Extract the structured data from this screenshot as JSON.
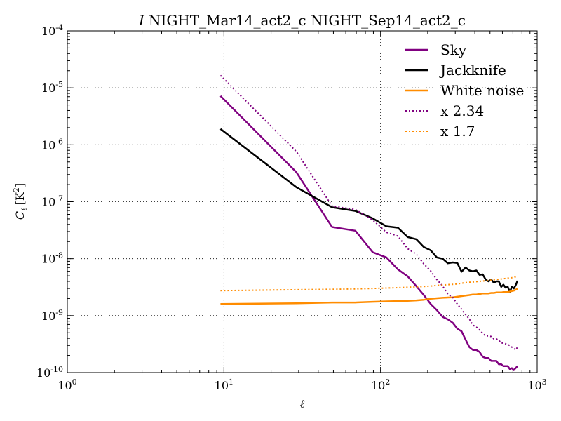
{
  "chart_data": {
    "type": "line",
    "title_italic": "I",
    "title": "NIGHT_Mar14_act2_c NIGHT_Sep14_act2_c",
    "xlabel": "ℓ",
    "ylabel_main": "C",
    "ylabel_sub": "ℓ",
    "ylabel_unit": "[K",
    "ylabel_unit_sup": "2",
    "ylabel_unit_close": "]",
    "x_scale": "log",
    "y_scale": "log",
    "xlim": [
      1,
      1000
    ],
    "ylim": [
      1e-10,
      0.0001
    ],
    "grid": true,
    "legend_position": "top-right",
    "x_ticks": [
      {
        "value": 1,
        "base": "10",
        "exp": "0"
      },
      {
        "value": 10,
        "base": "10",
        "exp": "1"
      },
      {
        "value": 100,
        "base": "10",
        "exp": "2"
      },
      {
        "value": 1000,
        "base": "10",
        "exp": "3"
      }
    ],
    "y_ticks": [
      {
        "value": 1e-10,
        "base": "10",
        "exp": "-10"
      },
      {
        "value": 1e-09,
        "base": "10",
        "exp": "-9"
      },
      {
        "value": 1e-08,
        "base": "10",
        "exp": "-8"
      },
      {
        "value": 1e-07,
        "base": "10",
        "exp": "-7"
      },
      {
        "value": 1e-06,
        "base": "10",
        "exp": "-6"
      },
      {
        "value": 1e-05,
        "base": "10",
        "exp": "-5"
      },
      {
        "value": 0.0001,
        "base": "10",
        "exp": "-4"
      }
    ],
    "series": [
      {
        "name": "Sky",
        "color": "#800080",
        "style": "solid",
        "points": [
          [
            9.5,
            7.2e-06
          ],
          [
            29,
            3.3e-07
          ],
          [
            49,
            3.6e-08
          ],
          [
            69,
            3.1e-08
          ],
          [
            89,
            1.3e-08
          ],
          [
            109,
            1.05e-08
          ],
          [
            129,
            6.5e-09
          ],
          [
            149,
            4.9e-09
          ],
          [
            169,
            3.3e-09
          ],
          [
            189,
            2.3e-09
          ],
          [
            209,
            1.6e-09
          ],
          [
            229,
            1.25e-09
          ],
          [
            249,
            9.5e-10
          ],
          [
            269,
            8.6e-10
          ],
          [
            289,
            7.5e-10
          ],
          [
            309,
            5.9e-10
          ],
          [
            329,
            5.3e-10
          ],
          [
            349,
            3.8e-10
          ],
          [
            369,
            2.8e-10
          ],
          [
            389,
            2.5e-10
          ],
          [
            409,
            2.5e-10
          ],
          [
            429,
            2.3e-10
          ],
          [
            449,
            1.9e-10
          ],
          [
            469,
            1.8e-10
          ],
          [
            489,
            1.8e-10
          ],
          [
            509,
            1.6e-10
          ],
          [
            529,
            1.6e-10
          ],
          [
            549,
            1.6e-10
          ],
          [
            569,
            1.4e-10
          ],
          [
            589,
            1.4e-10
          ],
          [
            609,
            1.3e-10
          ],
          [
            629,
            1.3e-10
          ],
          [
            649,
            1.3e-10
          ],
          [
            669,
            1.15e-10
          ],
          [
            689,
            1.2e-10
          ],
          [
            709,
            1.1e-10
          ],
          [
            729,
            1.2e-10
          ],
          [
            749,
            1.3e-10
          ]
        ]
      },
      {
        "name": "Jackknife",
        "color": "#000000",
        "style": "solid",
        "points": [
          [
            9.5,
            1.9e-06
          ],
          [
            29,
            1.8e-07
          ],
          [
            49,
            8e-08
          ],
          [
            69,
            6.9e-08
          ],
          [
            89,
            5.1e-08
          ],
          [
            109,
            3.7e-08
          ],
          [
            129,
            3.5e-08
          ],
          [
            149,
            2.4e-08
          ],
          [
            169,
            2.2e-08
          ],
          [
            189,
            1.6e-08
          ],
          [
            209,
            1.4e-08
          ],
          [
            229,
            1.05e-08
          ],
          [
            249,
            1e-08
          ],
          [
            269,
            8.3e-09
          ],
          [
            289,
            8.6e-09
          ],
          [
            309,
            8.4e-09
          ],
          [
            329,
            5.9e-09
          ],
          [
            349,
            7e-09
          ],
          [
            369,
            6.2e-09
          ],
          [
            389,
            6e-09
          ],
          [
            409,
            6.2e-09
          ],
          [
            429,
            5.2e-09
          ],
          [
            449,
            5.3e-09
          ],
          [
            469,
            4.3e-09
          ],
          [
            489,
            4e-09
          ],
          [
            509,
            4.3e-09
          ],
          [
            529,
            3.8e-09
          ],
          [
            549,
            4e-09
          ],
          [
            569,
            4e-09
          ],
          [
            589,
            3.2e-09
          ],
          [
            609,
            3.5e-09
          ],
          [
            629,
            3.1e-09
          ],
          [
            649,
            3.2e-09
          ],
          [
            669,
            2.6e-09
          ],
          [
            689,
            3.2e-09
          ],
          [
            709,
            3e-09
          ],
          [
            729,
            3.4e-09
          ],
          [
            749,
            4.1e-09
          ]
        ]
      },
      {
        "name": "White noise",
        "color": "#ff8c00",
        "style": "solid",
        "points": [
          [
            9.5,
            1.6e-09
          ],
          [
            29,
            1.65e-09
          ],
          [
            49,
            1.7e-09
          ],
          [
            69,
            1.7e-09
          ],
          [
            89,
            1.75e-09
          ],
          [
            109,
            1.78e-09
          ],
          [
            129,
            1.8e-09
          ],
          [
            149,
            1.82e-09
          ],
          [
            169,
            1.85e-09
          ],
          [
            189,
            1.9e-09
          ],
          [
            209,
            1.98e-09
          ],
          [
            229,
            2.02e-09
          ],
          [
            249,
            2.06e-09
          ],
          [
            269,
            2.08e-09
          ],
          [
            289,
            2.1e-09
          ],
          [
            309,
            2.15e-09
          ],
          [
            329,
            2.2e-09
          ],
          [
            349,
            2.25e-09
          ],
          [
            369,
            2.3e-09
          ],
          [
            389,
            2.35e-09
          ],
          [
            409,
            2.35e-09
          ],
          [
            429,
            2.4e-09
          ],
          [
            449,
            2.45e-09
          ],
          [
            469,
            2.45e-09
          ],
          [
            489,
            2.45e-09
          ],
          [
            509,
            2.5e-09
          ],
          [
            529,
            2.5e-09
          ],
          [
            549,
            2.55e-09
          ],
          [
            569,
            2.55e-09
          ],
          [
            589,
            2.55e-09
          ],
          [
            609,
            2.6e-09
          ],
          [
            629,
            2.6e-09
          ],
          [
            649,
            2.6e-09
          ],
          [
            669,
            2.65e-09
          ],
          [
            689,
            2.7e-09
          ],
          [
            709,
            2.75e-09
          ],
          [
            729,
            2.85e-09
          ],
          [
            749,
            2.95e-09
          ]
        ]
      },
      {
        "name": "x 2.34",
        "color": "#800080",
        "style": "dotted",
        "points": [
          [
            9.5,
            1.65e-05
          ],
          [
            29,
            7.6e-07
          ],
          [
            49,
            8.4e-08
          ],
          [
            69,
            7.3e-08
          ],
          [
            89,
            4.8e-08
          ],
          [
            109,
            2.9e-08
          ],
          [
            129,
            2.5e-08
          ],
          [
            149,
            1.5e-08
          ],
          [
            169,
            1.2e-08
          ],
          [
            189,
            8.1e-09
          ],
          [
            209,
            6.1e-09
          ],
          [
            229,
            4.3e-09
          ],
          [
            249,
            3.3e-09
          ],
          [
            269,
            2.4e-09
          ],
          [
            289,
            2.1e-09
          ],
          [
            309,
            1.6e-09
          ],
          [
            329,
            1.3e-09
          ],
          [
            349,
            1.05e-09
          ],
          [
            369,
            8.7e-10
          ],
          [
            389,
            6.8e-10
          ],
          [
            409,
            6.3e-10
          ],
          [
            429,
            5.6e-10
          ],
          [
            449,
            4.9e-10
          ],
          [
            469,
            4.4e-10
          ],
          [
            489,
            4.4e-10
          ],
          [
            509,
            4.3e-10
          ],
          [
            529,
            3.9e-10
          ],
          [
            549,
            3.9e-10
          ],
          [
            569,
            3.7e-10
          ],
          [
            589,
            3.3e-10
          ],
          [
            609,
            3.3e-10
          ],
          [
            629,
            3.2e-10
          ],
          [
            649,
            3.1e-10
          ],
          [
            669,
            3e-10
          ],
          [
            689,
            2.8e-10
          ],
          [
            709,
            2.7e-10
          ],
          [
            729,
            2.5e-10
          ],
          [
            749,
            2.8e-10
          ]
        ]
      },
      {
        "name": "x 1.7",
        "color": "#ff8c00",
        "style": "dotted",
        "points": [
          [
            9.5,
            2.75e-09
          ],
          [
            29,
            2.85e-09
          ],
          [
            49,
            2.9e-09
          ],
          [
            69,
            2.95e-09
          ],
          [
            89,
            3e-09
          ],
          [
            109,
            3.05e-09
          ],
          [
            129,
            3.1e-09
          ],
          [
            149,
            3.15e-09
          ],
          [
            169,
            3.2e-09
          ],
          [
            189,
            3.25e-09
          ],
          [
            209,
            3.3e-09
          ],
          [
            229,
            3.4e-09
          ],
          [
            249,
            3.45e-09
          ],
          [
            269,
            3.5e-09
          ],
          [
            289,
            3.55e-09
          ],
          [
            309,
            3.6e-09
          ],
          [
            329,
            3.7e-09
          ],
          [
            349,
            3.8e-09
          ],
          [
            369,
            3.85e-09
          ],
          [
            389,
            3.9e-09
          ],
          [
            409,
            3.95e-09
          ],
          [
            429,
            4e-09
          ],
          [
            449,
            4.05e-09
          ],
          [
            469,
            4.1e-09
          ],
          [
            489,
            4.15e-09
          ],
          [
            509,
            4.2e-09
          ],
          [
            529,
            4.25e-09
          ],
          [
            549,
            4.3e-09
          ],
          [
            569,
            4.35e-09
          ],
          [
            589,
            4.4e-09
          ],
          [
            609,
            4.45e-09
          ],
          [
            629,
            4.5e-09
          ],
          [
            649,
            4.55e-09
          ],
          [
            669,
            4.6e-09
          ],
          [
            689,
            4.65e-09
          ],
          [
            709,
            4.7e-09
          ],
          [
            729,
            4.8e-09
          ],
          [
            749,
            4.9e-09
          ]
        ]
      }
    ]
  }
}
